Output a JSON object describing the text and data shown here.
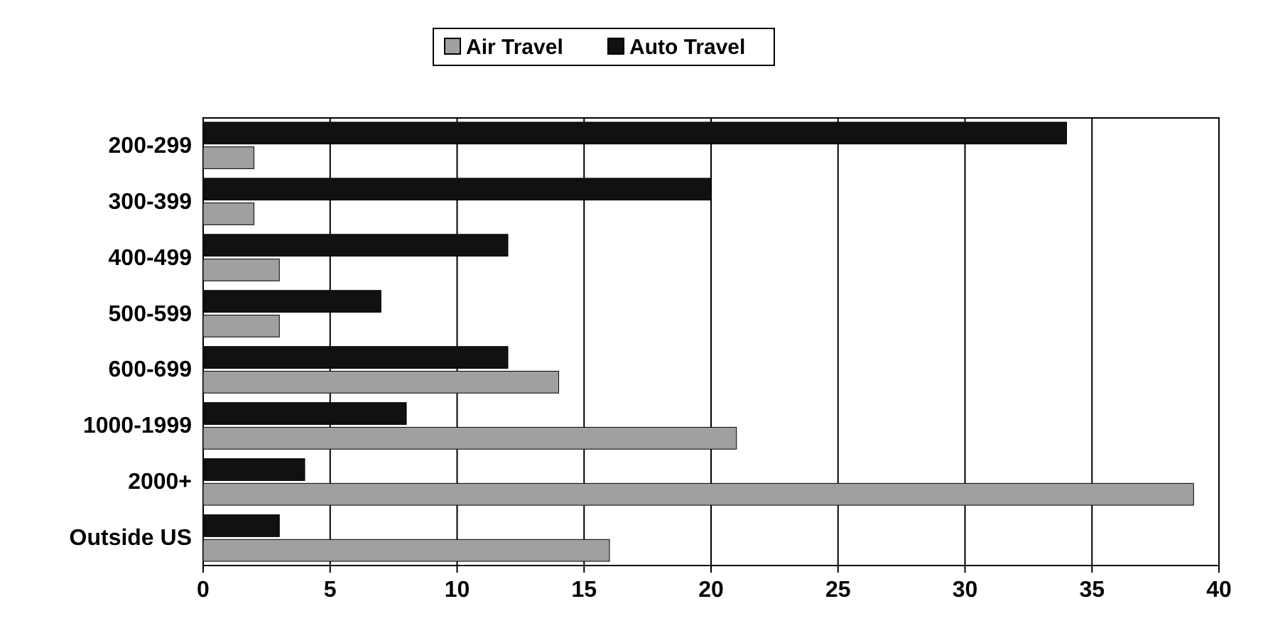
{
  "chart_data": {
    "type": "bar",
    "orientation": "horizontal",
    "categories": [
      "200-299",
      "300-399",
      "400-499",
      "500-599",
      "600-699",
      "1000-1999",
      "2000+",
      "Outside US"
    ],
    "series": [
      {
        "name": "Air Travel",
        "color": "#a0a0a0",
        "values": [
          2,
          2,
          3,
          3,
          14,
          21,
          39,
          16
        ]
      },
      {
        "name": "Auto Travel",
        "color": "#111111",
        "values": [
          34,
          20,
          12,
          7,
          12,
          8,
          4,
          3
        ]
      }
    ],
    "xlim": [
      0,
      40
    ],
    "xticks": [
      0,
      5,
      10,
      15,
      20,
      25,
      30,
      35,
      40
    ],
    "grid": "x",
    "legend": "top"
  }
}
